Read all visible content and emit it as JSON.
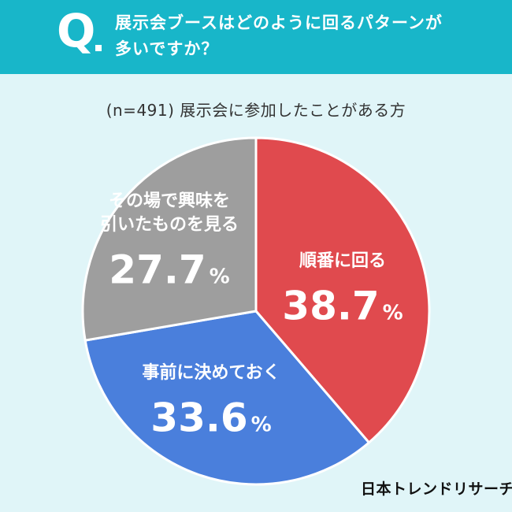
{
  "header": {
    "q_mark": "Q",
    "question_lines": [
      "展示会ブースはどのように回るパターンが",
      "多いですか？"
    ]
  },
  "subtitle": "(n=491) 展示会に参加したことがある方",
  "brand": "日本トレンドリサーチ",
  "colors": {
    "header_bg": "#18b6c9",
    "page_bg": "#e0f5f8",
    "slice_red": "#e04a4e",
    "slice_blue": "#4a7fdc",
    "slice_gray": "#9e9e9e"
  },
  "chart_data": {
    "type": "pie",
    "title": "展示会ブースはどのように回るパターンが多いですか？",
    "subtitle": "(n=491) 展示会に参加したことがある方",
    "start_angle": "12 o'clock, clockwise",
    "slices": [
      {
        "label_lines": [
          "順番に回る"
        ],
        "value": 38.7,
        "value_text": "38.7",
        "unit": "%",
        "color": "#e04a4e"
      },
      {
        "label_lines": [
          "事前に決めておく"
        ],
        "value": 33.6,
        "value_text": "33.6",
        "unit": "%",
        "color": "#4a7fdc"
      },
      {
        "label_lines": [
          "その場で興味を",
          "引いたものを見る"
        ],
        "value": 27.7,
        "value_text": "27.7",
        "unit": "%",
        "color": "#9e9e9e"
      }
    ]
  }
}
